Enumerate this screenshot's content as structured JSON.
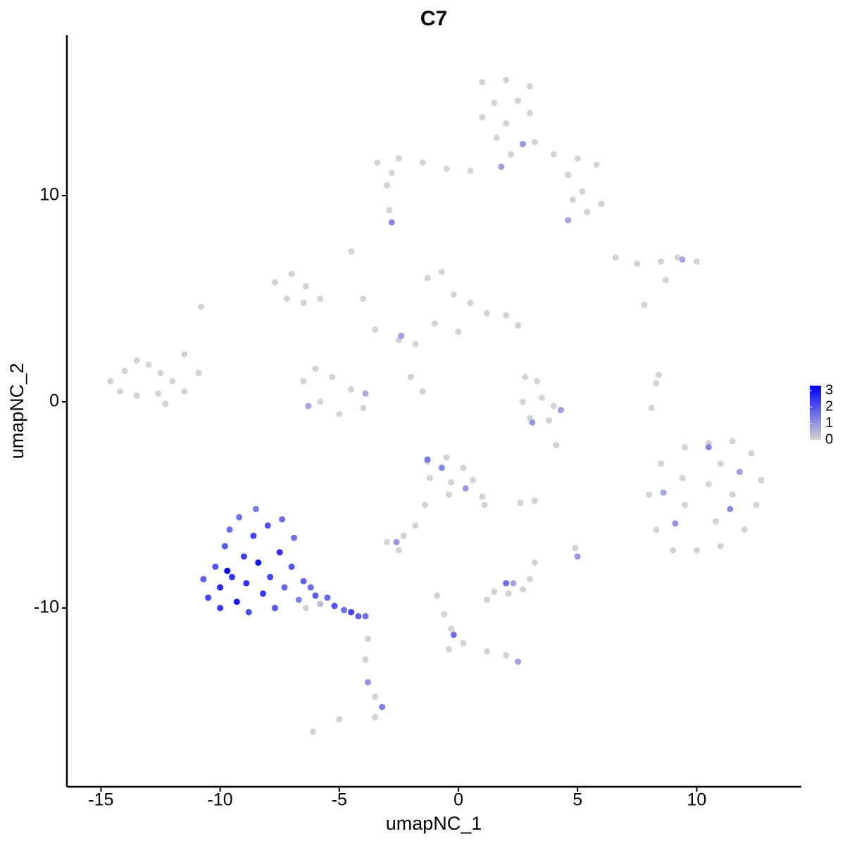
{
  "chart_data": {
    "type": "scatter",
    "title": "C7",
    "x_label": "umapNC_1",
    "y_label": "umapNC_2",
    "xlim": [
      -16.43,
      14.39
    ],
    "ylim": [
      -18.67,
      17.78
    ],
    "xticks": [
      -15,
      -10,
      -5,
      0,
      5,
      10
    ],
    "yticks": [
      -10,
      0,
      10
    ],
    "color_scale": {
      "low": "#d3d3d3",
      "high": "#0000ff",
      "lim": [
        0,
        3.3
      ],
      "ticks": [
        0,
        1,
        2,
        3
      ]
    },
    "x": [
      1,
      2,
      3,
      1.5,
      2.5,
      1,
      2,
      3,
      1.6,
      2.2,
      3.2,
      4,
      5,
      5.8,
      4.6,
      5.2,
      6,
      5.4,
      4.8,
      0.5,
      -0.5,
      -1.5,
      -2.5,
      -3.4,
      -2.8,
      1.8,
      2.7,
      4.6,
      -2.8,
      -2.9,
      -3,
      -14.6,
      -14,
      -13.5,
      -13,
      -12.5,
      -12,
      -11.5,
      -12.6,
      -13.5,
      -14.2,
      -11.5,
      -10.9,
      -12.3,
      -10.8,
      -7.7,
      -7,
      -6.4,
      -5.8,
      -7.2,
      -6.5,
      -4.5,
      -4,
      -3.5,
      -2.5,
      -1.3,
      -0.7,
      -0.2,
      0.5,
      1.2,
      2,
      2.5,
      -1,
      0,
      -1.8,
      -2,
      -1.5,
      -6.5,
      -6,
      -5.3,
      -4.5,
      -5.8,
      -5,
      -4,
      -6.3,
      -3.9,
      -2.4,
      2.8,
      3.3,
      2.7,
      3.5,
      4,
      3,
      3.8,
      4.3,
      3.1,
      8.3,
      8.1,
      8.4,
      4.1,
      6.6,
      7.5,
      8.5,
      9.2,
      10,
      9.4,
      8.7,
      7.8,
      8,
      8.5,
      9.5,
      10.5,
      11.5,
      12.3,
      12.7,
      12.5,
      12,
      11,
      10,
      9,
      8.3,
      9.5,
      10.5,
      11.5,
      10.8,
      9.4,
      11,
      10.5,
      9.1,
      11.4,
      11.8,
      8.6,
      -1.3,
      -0.5,
      0.2,
      -1.2,
      -0.3,
      0.6,
      1,
      1.1,
      -0.4,
      -1.4,
      -1.8,
      -2.3,
      -3,
      -2.5,
      -1.3,
      -0.7,
      0.3,
      -2.6,
      2.6,
      3.2,
      -10.7,
      -10.5,
      -10.2,
      -10,
      -10,
      -9.8,
      -9.6,
      -9.5,
      -9.3,
      -9.2,
      -9,
      -8.9,
      -8.8,
      -8.6,
      -8.5,
      -8.4,
      -8.2,
      -8,
      -7.9,
      -7.7,
      -7.5,
      -7.4,
      -7.3,
      -7,
      -6.9,
      -6.7,
      -6.5,
      -6.2,
      -6,
      -5.5,
      -5.2,
      -4.8,
      -4.5,
      -4.2,
      -3.9,
      -6.4,
      -5.8,
      -9.7,
      -3.8,
      -3.9,
      -3.8,
      -3.5,
      -3.2,
      -3.5,
      -5,
      -6.1,
      -0.9,
      -0.6,
      -0.3,
      -0.2,
      0.2,
      1.2,
      2,
      2.5,
      -0.4,
      1.5,
      2.1,
      2.7,
      2,
      3,
      3.2,
      4.9,
      5,
      2.3,
      1.2
    ],
    "y": [
      15.5,
      15.6,
      15.3,
      14.5,
      14.6,
      13.8,
      13.5,
      14,
      12.8,
      12,
      12.6,
      12,
      11.8,
      11.5,
      11,
      10.2,
      9.6,
      9.2,
      9.8,
      11.2,
      11.3,
      11.6,
      11.8,
      11.6,
      11.1,
      11.4,
      12.5,
      8.8,
      8.7,
      9.3,
      10.5,
      1,
      1.5,
      2,
      1.8,
      1.4,
      1,
      0.5,
      0.4,
      0.3,
      0.5,
      2.3,
      1.4,
      -0.1,
      4.6,
      5.8,
      6.2,
      5.6,
      5,
      5,
      4.8,
      7.3,
      5,
      3.5,
      3,
      6,
      6.3,
      5.2,
      4.8,
      4.3,
      4.2,
      3.7,
      3.8,
      3.4,
      2.8,
      1.2,
      0.5,
      1,
      1.6,
      1.2,
      0.6,
      0,
      -0.6,
      -0.3,
      -0.2,
      0.4,
      3.2,
      1.2,
      1,
      0,
      0.2,
      -0.2,
      -0.8,
      -0.9,
      -0.4,
      -1,
      0.9,
      -0.3,
      1.3,
      -2.1,
      7,
      6.7,
      6.8,
      7,
      6.8,
      6.9,
      5.9,
      4.7,
      -4.5,
      -3,
      -2.2,
      -2,
      -1.9,
      -2.5,
      -3.8,
      -5,
      -6.2,
      -7,
      -7.2,
      -7.2,
      -6.2,
      -5,
      -4,
      -4.5,
      -5.8,
      -3.7,
      -3,
      -2.2,
      -5.9,
      -5.2,
      -3.4,
      -4.4,
      -2.9,
      -2.7,
      -3.2,
      -3.7,
      -3.9,
      -3.8,
      -4.6,
      -5,
      -4.5,
      -5,
      -6,
      -6.5,
      -6.8,
      -7.2,
      -2.8,
      -3.2,
      -4.2,
      -6.8,
      -4.9,
      -4.8,
      -8.6,
      -9.5,
      -8,
      -9,
      -10,
      -7,
      -6.2,
      -8.5,
      -9.7,
      -5.6,
      -7.5,
      -8.8,
      -10.2,
      -6.5,
      -5.2,
      -7.8,
      -9.3,
      -6,
      -8.5,
      -10,
      -7.3,
      -5.7,
      -9,
      -8,
      -6.6,
      -9.6,
      -8.7,
      -9,
      -9.4,
      -9.5,
      -9.9,
      -10.1,
      -10.2,
      -10.4,
      -10.4,
      -10,
      -9.8,
      -8.2,
      -11.5,
      -12.5,
      -13.6,
      -14.3,
      -14.8,
      -15.3,
      -15.4,
      -16,
      -9.4,
      -10.3,
      -11,
      -11.3,
      -11.7,
      -12.1,
      -12.3,
      -12.6,
      -12,
      -9.2,
      -9.3,
      -9.1,
      -8.8,
      -8.6,
      -7.8,
      -7.1,
      -7.5,
      -8.8,
      -9.6
    ],
    "values": [
      0,
      0,
      0,
      0,
      0,
      0,
      0,
      0,
      0,
      0,
      0,
      0,
      0,
      0,
      0,
      0,
      0,
      0,
      0,
      0,
      0,
      0,
      0,
      0,
      0,
      0.8,
      0.9,
      0.7,
      1.2,
      0,
      0,
      0,
      0,
      0,
      0,
      0,
      0,
      0,
      0,
      0,
      0,
      0,
      0,
      0,
      0,
      0,
      0,
      0,
      0,
      0,
      0,
      0,
      0,
      0,
      0,
      0,
      0,
      0,
      0,
      0,
      0,
      0,
      0,
      0,
      0,
      0,
      0,
      0,
      0,
      0,
      0,
      0,
      0,
      0,
      0.7,
      0.6,
      0.8,
      0,
      0,
      0,
      0,
      0,
      0,
      0,
      0.8,
      0.9,
      0,
      0,
      0,
      0,
      0,
      0,
      0,
      0,
      0,
      0.7,
      0,
      0,
      0,
      0,
      0,
      0,
      0,
      0,
      0,
      0,
      0,
      0,
      0,
      0,
      0,
      0,
      0,
      0,
      0,
      0,
      0,
      1.2,
      1,
      1.1,
      0.8,
      0.7,
      0,
      0,
      0,
      0,
      0,
      0,
      0,
      0,
      0,
      0,
      0,
      0,
      0,
      0,
      1.4,
      1.2,
      0.9,
      0.9,
      0,
      0,
      1.8,
      2.2,
      2,
      2.7,
      2.4,
      1.9,
      1.6,
      2.5,
      2.9,
      1.5,
      2.3,
      2.6,
      2.1,
      2.2,
      1.4,
      3,
      2.4,
      2,
      2.2,
      1.9,
      2.6,
      1.6,
      1.7,
      2,
      1.5,
      1.3,
      1.8,
      1.6,
      1.9,
      1.7,
      2,
      1.6,
      2.3,
      1.8,
      1.5,
      0,
      0.4,
      3.2,
      0,
      0,
      1,
      0,
      1.3,
      0,
      0,
      0,
      0,
      0,
      0,
      1.6,
      0,
      0,
      0,
      0.8,
      0,
      0,
      0,
      0,
      1.6,
      0,
      0,
      0,
      0.9,
      0.7,
      0
    ]
  }
}
